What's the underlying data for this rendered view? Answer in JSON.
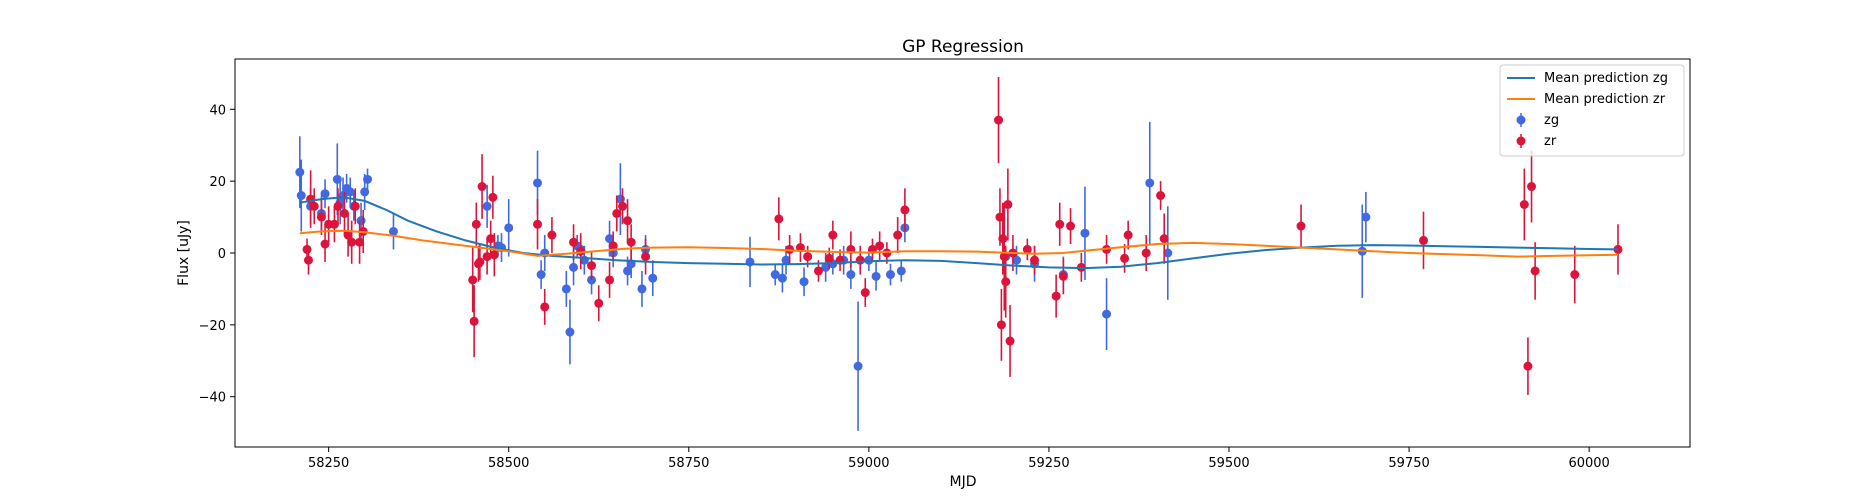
{
  "chart_data": {
    "type": "scatter",
    "title": "GP Regression",
    "xlabel": "MJD",
    "ylabel": "Flux [uJy]",
    "xlim": [
      58120,
      60140
    ],
    "ylim": [
      -54,
      54
    ],
    "xticks": [
      58250,
      58500,
      58750,
      59000,
      59250,
      59500,
      59750,
      60000
    ],
    "yticks": [
      -40,
      -20,
      0,
      20,
      40
    ],
    "legend_position": "top-right",
    "legend": [
      {
        "label": "Mean prediction zg",
        "kind": "line",
        "color": "#1f77b4"
      },
      {
        "label": "Mean prediction zr",
        "kind": "line",
        "color": "#ff7f0e"
      },
      {
        "label": "zg",
        "kind": "errorbar",
        "color": "#4169e1"
      },
      {
        "label": "zr",
        "kind": "errorbar",
        "color": "#dc143c"
      }
    ],
    "lines": [
      {
        "name": "Mean prediction zg",
        "color": "#1f77b4",
        "points": [
          [
            58210,
            14
          ],
          [
            58240,
            15
          ],
          [
            58270,
            15.5
          ],
          [
            58300,
            14.5
          ],
          [
            58330,
            12
          ],
          [
            58360,
            9
          ],
          [
            58400,
            6
          ],
          [
            58440,
            3.5
          ],
          [
            58480,
            1.5
          ],
          [
            58520,
            0
          ],
          [
            58560,
            -0.8
          ],
          [
            58600,
            -1.3
          ],
          [
            58650,
            -2
          ],
          [
            58700,
            -2.5
          ],
          [
            58750,
            -2.8
          ],
          [
            58800,
            -3
          ],
          [
            58850,
            -3.2
          ],
          [
            58900,
            -3.1
          ],
          [
            58950,
            -2.8
          ],
          [
            59000,
            -2.3
          ],
          [
            59050,
            -2
          ],
          [
            59100,
            -2.2
          ],
          [
            59150,
            -2.8
          ],
          [
            59200,
            -3.5
          ],
          [
            59250,
            -4
          ],
          [
            59300,
            -4.2
          ],
          [
            59350,
            -3.8
          ],
          [
            59400,
            -2.8
          ],
          [
            59450,
            -1.5
          ],
          [
            59500,
            -0.2
          ],
          [
            59550,
            0.8
          ],
          [
            59600,
            1.5
          ],
          [
            59650,
            2
          ],
          [
            59700,
            2.2
          ],
          [
            59750,
            2.1
          ],
          [
            59800,
            1.9
          ],
          [
            59850,
            1.7
          ],
          [
            59900,
            1.5
          ],
          [
            59950,
            1.3
          ],
          [
            60000,
            1.1
          ],
          [
            60040,
            1
          ]
        ]
      },
      {
        "name": "Mean prediction zr",
        "color": "#ff7f0e",
        "points": [
          [
            58210,
            5.5
          ],
          [
            58240,
            6
          ],
          [
            58270,
            6.2
          ],
          [
            58300,
            5.8
          ],
          [
            58340,
            4.8
          ],
          [
            58380,
            3.5
          ],
          [
            58420,
            2.5
          ],
          [
            58460,
            1.5
          ],
          [
            58500,
            0.5
          ],
          [
            58540,
            -0.8
          ],
          [
            58580,
            -0.2
          ],
          [
            58620,
            0.5
          ],
          [
            58660,
            1.2
          ],
          [
            58700,
            1.5
          ],
          [
            58750,
            1.6
          ],
          [
            58800,
            1.4
          ],
          [
            58850,
            1.1
          ],
          [
            58900,
            0.6
          ],
          [
            58950,
            0.3
          ],
          [
            59000,
            0.1
          ],
          [
            59050,
            0.5
          ],
          [
            59100,
            0.5
          ],
          [
            59150,
            0.4
          ],
          [
            59200,
            0
          ],
          [
            59230,
            -0.2
          ],
          [
            59270,
            0
          ],
          [
            59300,
            0.6
          ],
          [
            59350,
            1.6
          ],
          [
            59400,
            2.5
          ],
          [
            59450,
            2.8
          ],
          [
            59500,
            2.5
          ],
          [
            59550,
            2
          ],
          [
            59600,
            1.5
          ],
          [
            59650,
            1
          ],
          [
            59700,
            0.5
          ],
          [
            59750,
            0
          ],
          [
            59800,
            -0.3
          ],
          [
            59850,
            -0.6
          ],
          [
            59900,
            -1
          ],
          [
            59950,
            -0.8
          ],
          [
            60000,
            -0.6
          ],
          [
            60040,
            -0.5
          ]
        ]
      }
    ],
    "series": [
      {
        "name": "zg",
        "color": "#4169e1",
        "points": [
          [
            58210,
            22.5,
            10
          ],
          [
            58212,
            16,
            10
          ],
          [
            58225,
            13,
            5
          ],
          [
            58240,
            11,
            5
          ],
          [
            58245,
            16.5,
            4
          ],
          [
            58262,
            20.5,
            10
          ],
          [
            58266,
            14,
            6
          ],
          [
            58270,
            16,
            5
          ],
          [
            58275,
            18,
            4
          ],
          [
            58280,
            17,
            4
          ],
          [
            58285,
            13,
            4
          ],
          [
            58295,
            9,
            5
          ],
          [
            58300,
            17,
            5
          ],
          [
            58304,
            20.5,
            3
          ],
          [
            58340,
            6,
            5
          ],
          [
            58470,
            13,
            6
          ],
          [
            58485,
            2,
            3
          ],
          [
            58490,
            1.5,
            4
          ],
          [
            58500,
            7,
            8
          ],
          [
            58540,
            19.5,
            9
          ],
          [
            58545,
            -6,
            4
          ],
          [
            58550,
            0,
            5
          ],
          [
            58580,
            -10,
            5
          ],
          [
            58585,
            -22,
            9
          ],
          [
            58590,
            -4,
            5
          ],
          [
            58595,
            2,
            3
          ],
          [
            58600,
            1,
            4
          ],
          [
            58605,
            -2,
            4
          ],
          [
            58615,
            -7.5,
            4
          ],
          [
            58640,
            4,
            5
          ],
          [
            58645,
            0,
            4
          ],
          [
            58655,
            15,
            10
          ],
          [
            58665,
            -5,
            4
          ],
          [
            58670,
            -3,
            4
          ],
          [
            58685,
            -10,
            5
          ],
          [
            58690,
            1,
            4
          ],
          [
            58700,
            -7,
            5
          ],
          [
            58835,
            -2.5,
            7
          ],
          [
            58870,
            -6,
            3
          ],
          [
            58880,
            -7,
            4
          ],
          [
            58885,
            -2,
            4
          ],
          [
            58910,
            -8,
            4
          ],
          [
            58940,
            -4,
            4
          ],
          [
            58950,
            -3,
            3
          ],
          [
            58965,
            -2,
            4
          ],
          [
            58975,
            -6,
            4
          ],
          [
            58985,
            -31.5,
            18
          ],
          [
            59000,
            -2,
            3
          ],
          [
            59010,
            -6.5,
            4
          ],
          [
            59030,
            -6,
            3
          ],
          [
            59045,
            -5,
            3
          ],
          [
            59050,
            7,
            4
          ],
          [
            59190,
            -1,
            3
          ],
          [
            59205,
            -2,
            4
          ],
          [
            59230,
            -3,
            5
          ],
          [
            59270,
            -6,
            5
          ],
          [
            59300,
            5.5,
            13
          ],
          [
            59330,
            -17,
            10
          ],
          [
            59390,
            19.5,
            17
          ],
          [
            59415,
            0,
            13
          ],
          [
            59685,
            0.5,
            13
          ],
          [
            59690,
            10,
            7
          ]
        ]
      },
      {
        "name": "zr",
        "color": "#dc143c",
        "points": [
          [
            58220,
            1,
            3
          ],
          [
            58222,
            -2,
            4
          ],
          [
            58225,
            15,
            8
          ],
          [
            58230,
            13,
            5
          ],
          [
            58240,
            10,
            5
          ],
          [
            58245,
            2.5,
            5
          ],
          [
            58250,
            8,
            5
          ],
          [
            58258,
            8,
            5
          ],
          [
            58263,
            13,
            5
          ],
          [
            58272,
            11,
            6
          ],
          [
            58277,
            5,
            6
          ],
          [
            58282,
            3,
            6
          ],
          [
            58287,
            13,
            5
          ],
          [
            58293,
            3,
            6
          ],
          [
            58298,
            6,
            6
          ],
          [
            58450,
            -7.5,
            9
          ],
          [
            58452,
            -19,
            10
          ],
          [
            58455,
            8,
            6
          ],
          [
            58458,
            -3,
            5
          ],
          [
            58460,
            -2.5,
            5
          ],
          [
            58463,
            18.5,
            9
          ],
          [
            58470,
            -1,
            5
          ],
          [
            58475,
            4,
            5
          ],
          [
            58478,
            15.5,
            6
          ],
          [
            58480,
            -0.5,
            6
          ],
          [
            58540,
            8,
            7
          ],
          [
            58550,
            -15,
            5
          ],
          [
            58560,
            5,
            5
          ],
          [
            58590,
            3,
            5
          ],
          [
            58600,
            0.5,
            5
          ],
          [
            58615,
            -3.5,
            4
          ],
          [
            58625,
            -14,
            5
          ],
          [
            58640,
            -7.5,
            5
          ],
          [
            58645,
            2,
            4
          ],
          [
            58650,
            11,
            5
          ],
          [
            58658,
            13,
            5
          ],
          [
            58665,
            9,
            6
          ],
          [
            58670,
            3,
            5
          ],
          [
            58690,
            -1,
            5
          ],
          [
            58875,
            9.5,
            6
          ],
          [
            58890,
            1,
            4
          ],
          [
            58905,
            1.5,
            4
          ],
          [
            58915,
            -1,
            3
          ],
          [
            58930,
            -5,
            3
          ],
          [
            58945,
            -1.5,
            3
          ],
          [
            58950,
            5,
            4
          ],
          [
            58960,
            -2,
            3
          ],
          [
            58975,
            1,
            5
          ],
          [
            58988,
            -2,
            4
          ],
          [
            58995,
            -11,
            4
          ],
          [
            59005,
            1,
            3
          ],
          [
            59015,
            2,
            4
          ],
          [
            59025,
            0,
            3
          ],
          [
            59040,
            5,
            5
          ],
          [
            59050,
            12,
            6
          ],
          [
            59180,
            37,
            12
          ],
          [
            59182,
            10,
            8
          ],
          [
            59184,
            -20,
            10
          ],
          [
            59186,
            4,
            10
          ],
          [
            59188,
            -1,
            15
          ],
          [
            59190,
            -8,
            10
          ],
          [
            59193,
            13.5,
            10
          ],
          [
            59196,
            -24.5,
            10
          ],
          [
            59200,
            0,
            5
          ],
          [
            59220,
            1,
            3
          ],
          [
            59230,
            -2,
            4
          ],
          [
            59260,
            -12,
            6
          ],
          [
            59265,
            8,
            6
          ],
          [
            59270,
            -6.5,
            5
          ],
          [
            59280,
            7.5,
            5
          ],
          [
            59295,
            -4,
            4
          ],
          [
            59330,
            1,
            4
          ],
          [
            59355,
            -1.5,
            4
          ],
          [
            59360,
            5,
            4
          ],
          [
            59385,
            0,
            5
          ],
          [
            59405,
            16,
            4
          ],
          [
            59410,
            4,
            7
          ],
          [
            59600,
            7.5,
            6
          ],
          [
            59770,
            3.5,
            8
          ],
          [
            59910,
            13.5,
            10
          ],
          [
            59915,
            -31.5,
            8
          ],
          [
            59920,
            18.5,
            10
          ],
          [
            59925,
            -5,
            8
          ],
          [
            59980,
            -6,
            8
          ],
          [
            60040,
            1,
            7
          ]
        ]
      }
    ]
  }
}
